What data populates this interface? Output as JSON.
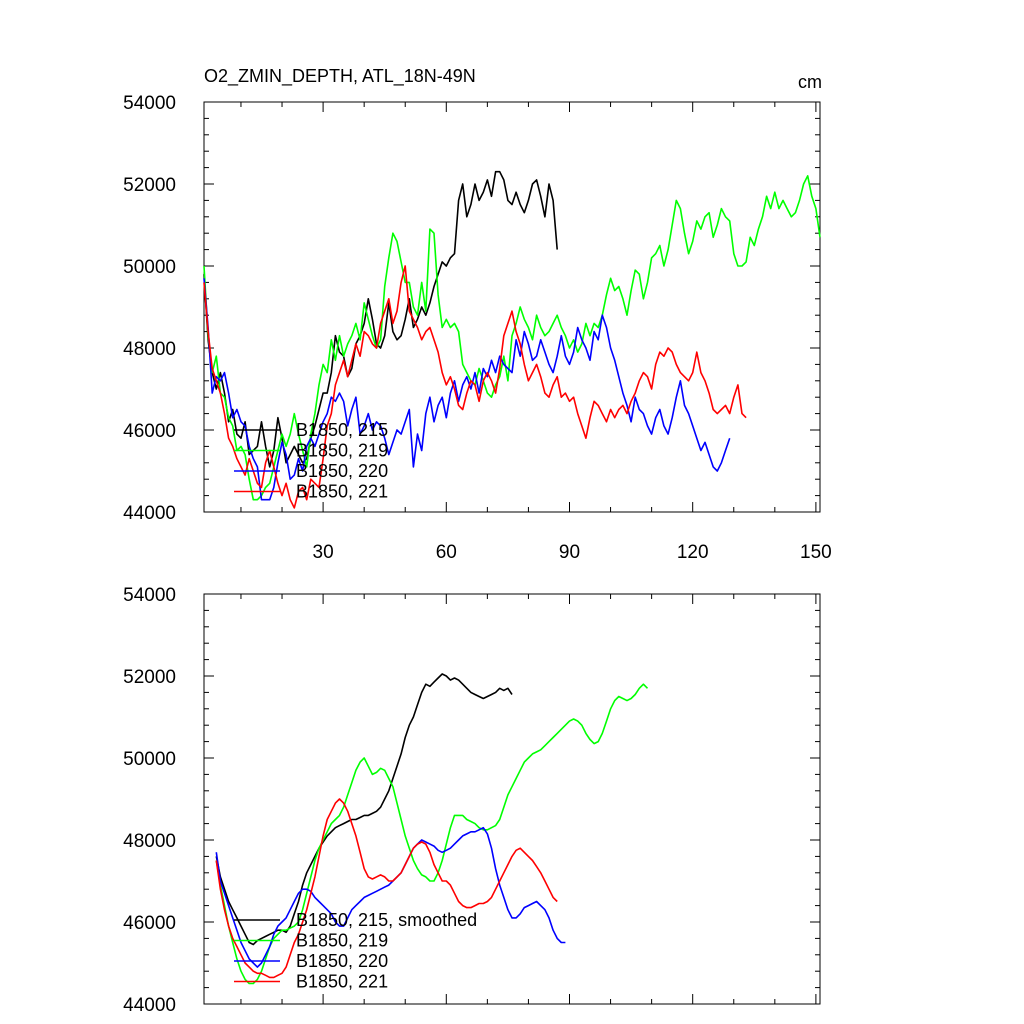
{
  "chart_data": [
    {
      "type": "line",
      "title": "O2_ZMIN_DEPTH, ATL_18N-49N",
      "units": "cm",
      "xlim": [
        1,
        151
      ],
      "ylim": [
        44000,
        54000
      ],
      "xticks": [
        30,
        60,
        90,
        120,
        150
      ],
      "yticks": [
        44000,
        46000,
        48000,
        50000,
        52000,
        54000
      ],
      "show_x_tick_labels": true,
      "legend_position": "bottom-left",
      "series": [
        {
          "name": "B1850, 215",
          "color": "#000000",
          "x_start": 1,
          "values": [
            49800,
            48200,
            47400,
            47000,
            47400,
            46900,
            46200,
            46500,
            45900,
            45800,
            46200,
            45400,
            45500,
            45600,
            46200,
            45600,
            45100,
            45500,
            46300,
            45800,
            45200,
            45400,
            45600,
            45400,
            45200,
            45300,
            45800,
            46100,
            46500,
            46900,
            46900,
            47400,
            48300,
            47900,
            47800,
            47300,
            47500,
            48100,
            48300,
            48600,
            49200,
            48700,
            48100,
            48000,
            48300,
            49100,
            48400,
            48200,
            48300,
            48700,
            49200,
            48500,
            48700,
            49000,
            48800,
            49100,
            49500,
            49800,
            50100,
            50000,
            50200,
            50300,
            51600,
            52000,
            51200,
            51500,
            52000,
            51600,
            51800,
            52100,
            51700,
            52300,
            52300,
            52100,
            51600,
            51500,
            51800,
            51500,
            51300,
            51600,
            52000,
            52100,
            51700,
            51200,
            52000,
            51600,
            50400
          ]
        },
        {
          "name": "B1850, 219",
          "color": "#00ff00",
          "x_start": 1,
          "values": [
            50000,
            48300,
            47400,
            47800,
            46900,
            46800,
            46300,
            46100,
            45500,
            45600,
            45400,
            44800,
            44300,
            44300,
            44400,
            44600,
            44700,
            45100,
            45500,
            45900,
            45600,
            45900,
            46400,
            45900,
            45500,
            45100,
            45900,
            46400,
            47100,
            47600,
            47400,
            48200,
            47700,
            48300,
            47800,
            48100,
            48300,
            48600,
            48200,
            49100,
            48700,
            48300,
            48000,
            48200,
            49500,
            50200,
            50800,
            50600,
            50100,
            49600,
            49600,
            49000,
            48800,
            49600,
            48900,
            50900,
            50800,
            49300,
            48500,
            48700,
            48500,
            48600,
            48400,
            47600,
            47400,
            47200,
            47100,
            47500,
            47200,
            46900,
            46800,
            47100,
            47300,
            47800,
            47200,
            48300,
            48600,
            49000,
            48700,
            48500,
            48200,
            48800,
            48500,
            48300,
            48400,
            48600,
            48800,
            48500,
            48300,
            48000,
            48200,
            47900,
            48100,
            48600,
            48300,
            48600,
            48500,
            48800,
            49300,
            49700,
            49400,
            49500,
            49200,
            48800,
            49400,
            49900,
            49800,
            49200,
            49600,
            50200,
            50300,
            50500,
            50000,
            50400,
            51000,
            51600,
            51400,
            50800,
            50300,
            50600,
            51100,
            50900,
            51200,
            51300,
            50700,
            51000,
            51400,
            51200,
            51100,
            50300,
            50000,
            50000,
            50100,
            50700,
            50500,
            50900,
            51200,
            51700,
            51400,
            51800,
            51400,
            51600,
            51400,
            51200,
            51300,
            51600,
            52000,
            52200,
            51700,
            51400,
            50700
          ]
        },
        {
          "name": "B1850, 220",
          "color": "#0000ff",
          "x_start": 1,
          "values": [
            49700,
            48500,
            46900,
            47300,
            47200,
            47400,
            46900,
            46300,
            46500,
            46200,
            46100,
            45600,
            45300,
            45100,
            44300,
            44300,
            44300,
            44600,
            45200,
            45700,
            45400,
            44800,
            44900,
            45300,
            45000,
            45600,
            45800,
            45600,
            45900,
            46200,
            46400,
            46800,
            46700,
            46900,
            46700,
            46100,
            46500,
            46800,
            45900,
            46100,
            46400,
            46000,
            46200,
            46100,
            45800,
            45400,
            45700,
            46000,
            45900,
            46200,
            46500,
            45100,
            45900,
            45500,
            46400,
            46800,
            46200,
            46600,
            46800,
            46300,
            46900,
            47200,
            46700,
            47100,
            47300,
            47000,
            47400,
            46900,
            47500,
            47300,
            47700,
            47400,
            47800,
            47600,
            47500,
            47400,
            48200,
            47800,
            48400,
            48100,
            47700,
            47800,
            48200,
            47900,
            47600,
            47400,
            47800,
            48300,
            47800,
            47600,
            47900,
            48500,
            48200,
            48000,
            47700,
            48400,
            48200,
            48800,
            48500,
            48000,
            47700,
            47300,
            46900,
            46600,
            46200,
            46800,
            46500,
            46400,
            46100,
            45900,
            46300,
            46500,
            46100,
            45900,
            46300,
            46800,
            47200,
            46600,
            46400,
            46100,
            45800,
            45500,
            45700,
            45400,
            45100,
            45000,
            45200,
            45500,
            45800
          ]
        },
        {
          "name": "B1850, 221",
          "color": "#ff0000",
          "x_start": 1,
          "values": [
            49600,
            48400,
            47500,
            47200,
            46900,
            46400,
            45800,
            45600,
            45300,
            45100,
            44900,
            45300,
            45000,
            44700,
            44600,
            45200,
            45500,
            45100,
            44700,
            44400,
            44700,
            44300,
            44100,
            44500,
            44600,
            44300,
            44800,
            44700,
            44600,
            45300,
            46100,
            46400,
            47100,
            47400,
            47700,
            47300,
            47700,
            48100,
            47800,
            48400,
            48300,
            48100,
            48000,
            48600,
            48900,
            49200,
            48600,
            48900,
            49600,
            50000,
            48900,
            48700,
            48500,
            48200,
            48400,
            48500,
            48200,
            47900,
            47400,
            47100,
            47300,
            47000,
            46600,
            46500,
            46900,
            47200,
            47100,
            46700,
            47200,
            47400,
            47200,
            46900,
            47500,
            48300,
            48600,
            48900,
            48400,
            48100,
            47600,
            47200,
            47400,
            47600,
            47300,
            46900,
            46800,
            47100,
            47300,
            46800,
            46900,
            46700,
            46800,
            46400,
            46100,
            45800,
            46300,
            46700,
            46600,
            46400,
            46200,
            46500,
            46300,
            46500,
            46600,
            46400,
            46700,
            46900,
            47200,
            47400,
            47300,
            47000,
            47600,
            47900,
            47800,
            48000,
            47900,
            47600,
            47400,
            47300,
            47200,
            47400,
            47900,
            47400,
            47200,
            46900,
            46500,
            46400,
            46500,
            46600,
            46400,
            46800,
            47100,
            46400,
            46300
          ]
        }
      ]
    },
    {
      "type": "line",
      "title": "",
      "xlim": [
        1,
        151
      ],
      "ylim": [
        44000,
        54000
      ],
      "xticks": [
        30,
        60,
        90,
        120,
        150
      ],
      "yticks": [
        44000,
        46000,
        48000,
        50000,
        52000,
        54000
      ],
      "show_x_tick_labels": false,
      "legend_position": "bottom-left",
      "series": [
        {
          "name": "B1850, 215, smoothed",
          "color": "#000000",
          "x_start": 4,
          "values": [
            47600,
            47100,
            46800,
            46500,
            46300,
            46100,
            45900,
            45700,
            45500,
            45450,
            45550,
            45600,
            45650,
            45700,
            45750,
            45800,
            45800,
            45750,
            45900,
            46200,
            46500,
            46900,
            47200,
            47400,
            47600,
            47800,
            47950,
            48100,
            48200,
            48300,
            48350,
            48400,
            48450,
            48500,
            48500,
            48550,
            48600,
            48600,
            48650,
            48700,
            48800,
            49000,
            49200,
            49500,
            49800,
            50100,
            50500,
            50800,
            51000,
            51300,
            51600,
            51800,
            51750,
            51850,
            51950,
            52050,
            52000,
            51900,
            51950,
            51900,
            51800,
            51700,
            51600,
            51550,
            51500,
            51450,
            51500,
            51550,
            51600,
            51700,
            51650,
            51700,
            51550
          ]
        },
        {
          "name": "B1850, 219",
          "color": "#00ff00",
          "x_start": 4,
          "values": [
            47500,
            46900,
            46400,
            45900,
            45500,
            45100,
            44800,
            44600,
            44500,
            44500,
            44600,
            44800,
            45100,
            45400,
            45600,
            45700,
            45800,
            45800,
            45850,
            45900,
            46000,
            46300,
            46700,
            47100,
            47500,
            47800,
            48000,
            48200,
            48400,
            48500,
            48600,
            48800,
            49100,
            49400,
            49700,
            49900,
            50000,
            49800,
            49600,
            49650,
            49750,
            49700,
            49500,
            49300,
            48900,
            48500,
            48100,
            47800,
            47500,
            47300,
            47150,
            47100,
            47000,
            47000,
            47200,
            47500,
            47900,
            48300,
            48600,
            48600,
            48600,
            48500,
            48450,
            48400,
            48300,
            48250,
            48250,
            48300,
            48350,
            48500,
            48800,
            49100,
            49300,
            49500,
            49700,
            49900,
            50000,
            50100,
            50150,
            50200,
            50300,
            50400,
            50500,
            50600,
            50700,
            50800,
            50900,
            50950,
            50900,
            50800,
            50600,
            50450,
            50350,
            50400,
            50600,
            50900,
            51200,
            51400,
            51500,
            51450,
            51400,
            51450,
            51550,
            51700,
            51800,
            51700
          ]
        },
        {
          "name": "B1850, 220",
          "color": "#0000ff",
          "x_start": 4,
          "values": [
            47700,
            47000,
            46700,
            46400,
            46100,
            45800,
            45500,
            45300,
            45100,
            45000,
            44900,
            45000,
            45200,
            45400,
            45700,
            45900,
            46000,
            46100,
            46300,
            46500,
            46700,
            46800,
            46800,
            46750,
            46600,
            46500,
            46400,
            46300,
            46200,
            46000,
            45900,
            45900,
            46100,
            46300,
            46400,
            46500,
            46600,
            46650,
            46700,
            46750,
            46800,
            46850,
            46900,
            47000,
            47100,
            47200,
            47400,
            47600,
            47800,
            47900,
            48000,
            47950,
            47900,
            47850,
            47750,
            47700,
            47750,
            47800,
            47900,
            48000,
            48100,
            48150,
            48200,
            48200,
            48250,
            48300,
            48150,
            47800,
            47300,
            46900,
            46600,
            46300,
            46100,
            46100,
            46200,
            46350,
            46400,
            46450,
            46500,
            46400,
            46300,
            46100,
            45800,
            45600,
            45500,
            45500
          ]
        },
        {
          "name": "B1850, 221",
          "color": "#ff0000",
          "x_start": 4,
          "values": [
            47500,
            46800,
            46300,
            45900,
            45600,
            45400,
            45200,
            45000,
            44900,
            44800,
            44750,
            44750,
            44700,
            44650,
            44650,
            44700,
            44750,
            44900,
            45200,
            45500,
            45700,
            46000,
            46300,
            46700,
            47100,
            47600,
            48100,
            48500,
            48700,
            48900,
            49000,
            48900,
            48700,
            48400,
            48100,
            47700,
            47300,
            47100,
            47050,
            47100,
            47150,
            47100,
            47000,
            47000,
            47100,
            47200,
            47400,
            47600,
            47800,
            47900,
            47950,
            47900,
            47700,
            47400,
            47200,
            47000,
            47000,
            46900,
            46700,
            46500,
            46400,
            46350,
            46350,
            46400,
            46450,
            46450,
            46500,
            46600,
            46800,
            47000,
            47200,
            47400,
            47600,
            47750,
            47800,
            47700,
            47600,
            47500,
            47350,
            47200,
            47000,
            46800,
            46600,
            46500
          ]
        }
      ]
    }
  ]
}
